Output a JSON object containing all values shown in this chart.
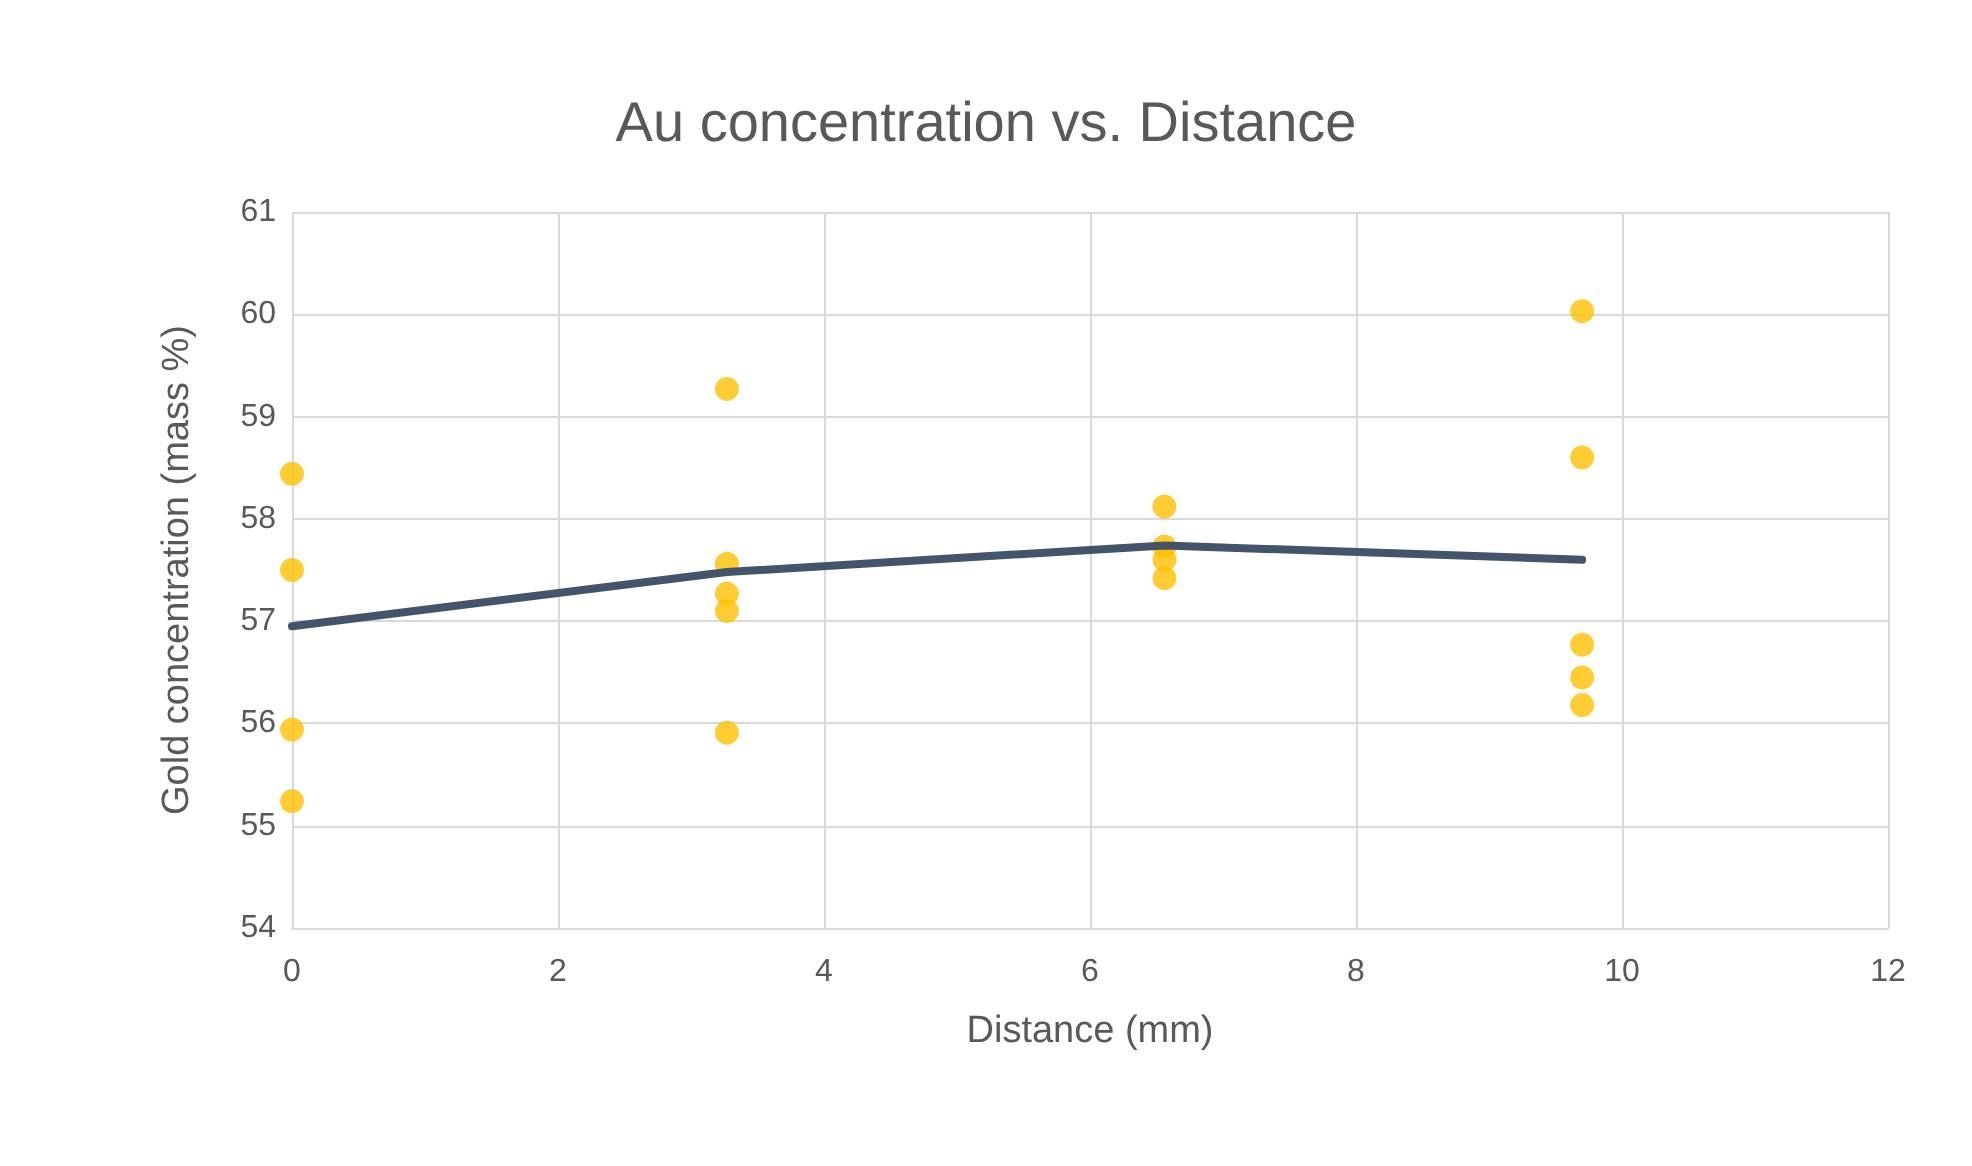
{
  "chart_data": {
    "type": "scatter",
    "title": "Au concentration vs. Distance",
    "xlabel": "Distance (mm)",
    "ylabel": "Gold concentration (mass %)",
    "series": [
      {
        "color": "#ffc000",
        "marker": "circle",
        "x": [
          0,
          0,
          0,
          0,
          3.27,
          3.27,
          3.27,
          3.27,
          3.27,
          6.56,
          6.56,
          6.56,
          6.56,
          9.7,
          9.7,
          9.7,
          9.7,
          9.7
        ],
        "values": [
          58.44,
          57.5,
          55.94,
          55.24,
          59.27,
          57.56,
          57.27,
          57.1,
          55.91,
          58.12,
          57.73,
          57.6,
          57.42,
          60.03,
          58.6,
          56.77,
          56.45,
          56.18
        ]
      },
      {
        "type": "line",
        "color": "#44546a",
        "marker": "none",
        "x": [
          0,
          3.27,
          6.56,
          9.7
        ],
        "values": [
          56.95,
          57.48,
          57.74,
          57.6
        ]
      }
    ],
    "xlim": [
      0,
      12
    ],
    "xticks": [
      0,
      2,
      4,
      6,
      8,
      10,
      12
    ],
    "ylim": [
      54,
      61
    ],
    "yticks": [
      54,
      55,
      56,
      57,
      58,
      59,
      60,
      61
    ],
    "grid": true
  }
}
